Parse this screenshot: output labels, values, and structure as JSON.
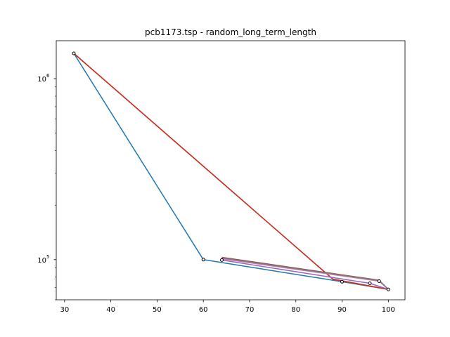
{
  "chart_data": {
    "type": "line",
    "title": "pcb1173.tsp - random_long_term_length",
    "xlabel": "",
    "ylabel": "",
    "y_scale": "log",
    "xlim": [
      28.2,
      103.6
    ],
    "ylim": [
      60000,
      1620000
    ],
    "x_ticks": [
      {
        "value": 30,
        "label": "30"
      },
      {
        "value": 40,
        "label": "40"
      },
      {
        "value": 50,
        "label": "50"
      },
      {
        "value": 60,
        "label": "60"
      },
      {
        "value": 70,
        "label": "70"
      },
      {
        "value": 80,
        "label": "80"
      },
      {
        "value": 90,
        "label": "90"
      },
      {
        "value": 100,
        "label": "100"
      }
    ],
    "y_ticks": [
      {
        "value": 100000,
        "base": "10",
        "exp": "5"
      },
      {
        "value": 1000000,
        "base": "10",
        "exp": "6"
      }
    ],
    "grid": false,
    "legend": "none",
    "series": [
      {
        "color": "#1f77b4",
        "x": [
          32,
          60,
          90,
          100
        ],
        "y": [
          1380000,
          100000,
          75500,
          68500
        ]
      },
      {
        "color": "#ff7f0e",
        "x": [
          32,
          88,
          100
        ],
        "y": [
          1380000,
          78000,
          68500
        ]
      },
      {
        "color": "#2ca02c",
        "x": [
          32,
          88,
          100
        ],
        "y": [
          1380000,
          78000,
          68500
        ]
      },
      {
        "color": "#d62728",
        "x": [
          32,
          88,
          100
        ],
        "y": [
          1380000,
          78000,
          68500
        ]
      },
      {
        "color": "#9467bd",
        "x": [
          64,
          96,
          100
        ],
        "y": [
          99500,
          74000,
          68500
        ]
      },
      {
        "color": "#8c564b",
        "x": [
          64,
          98,
          100
        ],
        "y": [
          103000,
          77000,
          68500
        ]
      },
      {
        "color": "#e377c2",
        "x": [
          64,
          98,
          100
        ],
        "y": [
          101000,
          76000,
          68500
        ]
      },
      {
        "color": "#7f7f7f",
        "x": [
          64,
          98,
          100
        ],
        "y": [
          102000,
          76500,
          68500
        ]
      }
    ],
    "markers": {
      "style": "hollow-circle",
      "x": [
        32,
        60,
        64,
        90,
        96,
        98,
        100
      ],
      "y": [
        1380000,
        100000,
        99500,
        75500,
        74000,
        76000,
        68500
      ]
    }
  }
}
